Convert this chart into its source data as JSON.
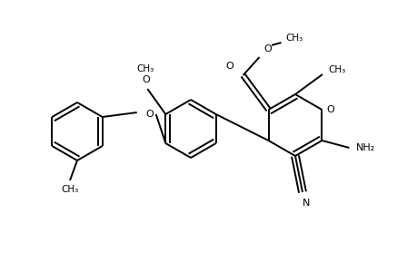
{
  "bg_color": "#ffffff",
  "line_color": "#000000",
  "line_width": 1.4,
  "figsize": [
    4.6,
    3.0
  ],
  "dpi": 100,
  "xlim": [
    0,
    460
  ],
  "ylim": [
    0,
    300
  ]
}
